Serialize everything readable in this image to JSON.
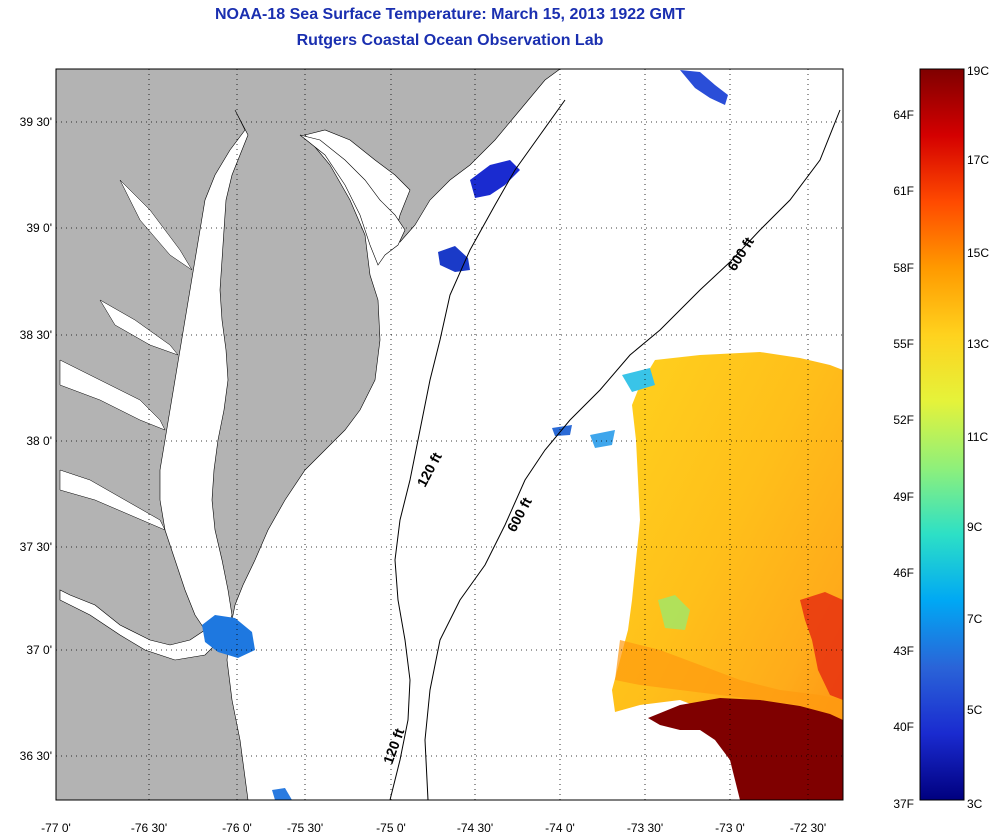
{
  "title": "NOAA-18 Sea Surface Temperature:  March 15, 2013 1922 GMT",
  "subtitle": "Rutgers Coastal Ocean Observation Lab",
  "map": {
    "lat_ticks": [
      "39 30'",
      "39 0'",
      "38 30'",
      "38 0'",
      "37 30'",
      "37 0'",
      "36 30'"
    ],
    "lon_ticks": [
      "-77 0'",
      "-76 30'",
      "-76 0'",
      "-75 30'",
      "-75 0'",
      "-74 30'",
      "-74 0'",
      "-73 30'",
      "-73 0'",
      "-72 30'"
    ],
    "contour_labels": [
      "600 ft",
      "120 ft",
      "600 ft",
      "120 ft"
    ],
    "colors": {
      "land": "#b3b3b3",
      "ocean": "#ffffff",
      "grid": "#000000"
    }
  },
  "colorbar": {
    "fahrenheit": [
      "64F",
      "61F",
      "58F",
      "55F",
      "52F",
      "49F",
      "46F",
      "43F",
      "40F",
      "37F"
    ],
    "celsius": [
      "19C",
      "17C",
      "15C",
      "13C",
      "11C",
      "9C",
      "7C",
      "5C",
      "3C"
    ],
    "gradient": [
      "#7f0000",
      "#d40000",
      "#ff4a00",
      "#ff9a00",
      "#ffd21e",
      "#e5f33a",
      "#8ff07a",
      "#2de0c6",
      "#00a8f4",
      "#2a64d8",
      "#1a2bd0",
      "#00007f"
    ]
  }
}
